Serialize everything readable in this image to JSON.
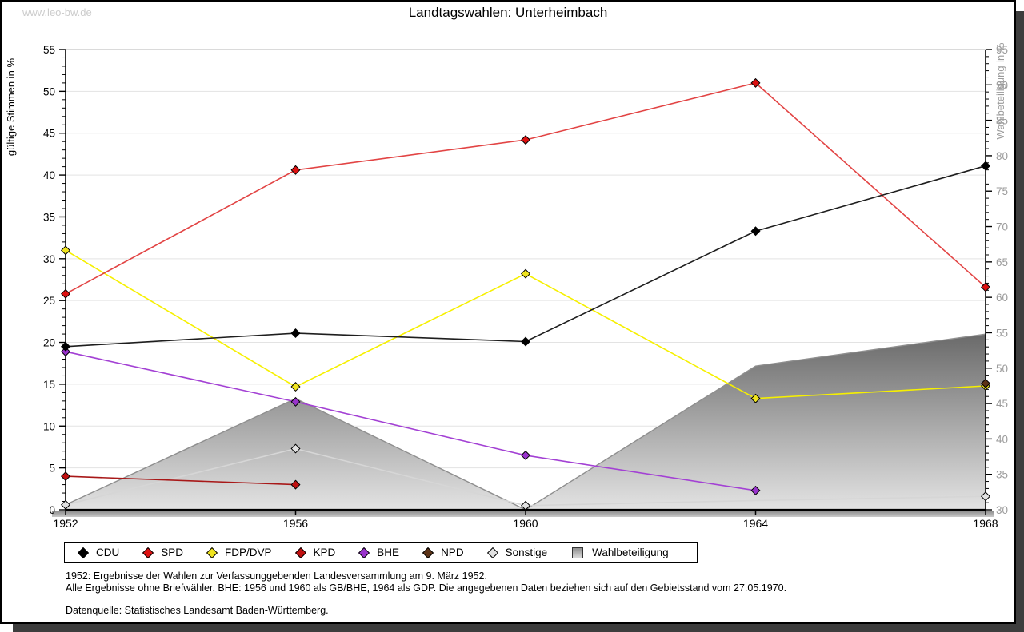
{
  "page": {
    "watermark": "www.leo-bw.de",
    "title": "Landtagswahlen: Unterheimbach",
    "footnotes": [
      "1952: Ergebnisse der Wahlen zur Verfassunggebenden Landesversammlung am 9. März 1952.",
      "Alle Ergebnisse ohne Briefwähler. BHE: 1956 und 1960 als GB/BHE, 1964 als GDP. Die angegebenen Daten beziehen sich auf den Gebietsstand vom 27.05.1970.",
      "Datenquelle: Statistisches Landesamt Baden-Württemberg."
    ]
  },
  "chart_data": {
    "type": "line",
    "title": "Landtagswahlen: Unterheimbach",
    "x_categories": [
      1952,
      1956,
      1960,
      1964,
      1968
    ],
    "left_axis": {
      "label": "gültige Stimmen in %",
      "min": 0,
      "max": 55,
      "tick_step": 5,
      "minor_step": 1,
      "color": "#000000"
    },
    "right_axis": {
      "label": "Wahlbeteiligung in %",
      "min": 30,
      "max": 95,
      "tick_step": 5,
      "minor_step": 1,
      "color": "#9b9b9b"
    },
    "grid": "horizontal-major",
    "grid_color": "#e3e3e3",
    "legend_position": "bottom",
    "legend_order": [
      "CDU",
      "SPD",
      "FDP/DVP",
      "KPD",
      "BHE",
      "NPD",
      "Sonstige",
      "Wahlbeteiligung"
    ],
    "series": [
      {
        "name": "CDU",
        "axis": "left",
        "color": "#000000",
        "line_color": "#1e1e1e",
        "points": [
          [
            1952,
            19.5
          ],
          [
            1956,
            21.1
          ],
          [
            1960,
            20.1
          ],
          [
            1964,
            33.3
          ],
          [
            1968,
            41.1
          ]
        ]
      },
      {
        "name": "SPD",
        "axis": "left",
        "color": "#dd1111",
        "line_color": "#e24444",
        "points": [
          [
            1952,
            25.8
          ],
          [
            1956,
            40.6
          ],
          [
            1960,
            44.2
          ],
          [
            1964,
            51.0
          ],
          [
            1968,
            26.6
          ]
        ]
      },
      {
        "name": "FDP/DVP",
        "axis": "left",
        "color": "#f0e41e",
        "line_color": "#f6f000",
        "points": [
          [
            1952,
            31.0
          ],
          [
            1956,
            14.7
          ],
          [
            1960,
            28.2
          ],
          [
            1964,
            13.3
          ],
          [
            1968,
            14.8
          ]
        ]
      },
      {
        "name": "KPD",
        "axis": "left",
        "color": "#c01010",
        "line_color": "#a81818",
        "points": [
          [
            1952,
            4.0
          ],
          [
            1956,
            3.0
          ]
        ]
      },
      {
        "name": "BHE",
        "axis": "left",
        "color": "#9933cc",
        "line_color": "#a341d4",
        "points": [
          [
            1952,
            18.9
          ],
          [
            1956,
            12.9
          ],
          [
            1960,
            6.5
          ],
          [
            1964,
            2.3
          ]
        ]
      },
      {
        "name": "NPD",
        "axis": "left",
        "color": "#5c3317",
        "line_color": "#5c3317",
        "points": [
          [
            1968,
            15.1
          ]
        ]
      },
      {
        "name": "Sonstige",
        "axis": "left",
        "color": "#e2e2e2",
        "line_color": "#d6d6d6",
        "points": [
          [
            1952,
            0.6
          ],
          [
            1956,
            7.3
          ],
          [
            1960,
            0.5
          ],
          [
            1964,
            1.1
          ],
          [
            1968,
            1.6
          ]
        ],
        "no_marker_x": [
          1964
        ]
      }
    ],
    "turnout_area": {
      "name": "Wahlbeteiligung",
      "axis": "right",
      "points": [
        [
          1952,
          30.7
        ],
        [
          1956,
          45.7
        ],
        [
          1960,
          30.0
        ],
        [
          1964,
          50.3
        ],
        [
          1968,
          54.8
        ]
      ],
      "fill_top": "#6a6a6a",
      "fill_bottom": "#e3e3e3",
      "stroke": "#8e8e8e"
    }
  }
}
